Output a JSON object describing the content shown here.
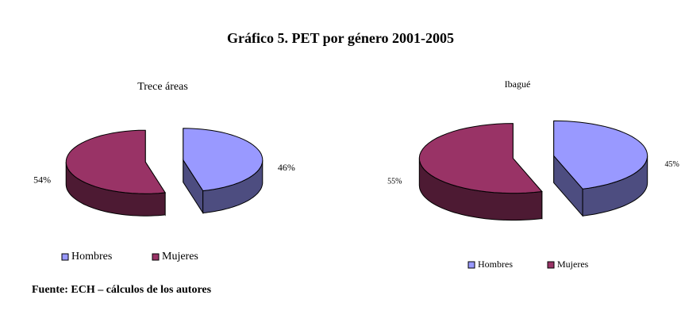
{
  "title": "Gráfico 5. PET por género 2001-2005",
  "source": "Fuente: ECH – cálculos de los autores",
  "chart_data": [
    {
      "type": "pie",
      "title": "Trece áreas",
      "categories": [
        "Hombres",
        "Mujeres"
      ],
      "values": [
        46,
        54
      ],
      "value_labels": [
        "46%",
        "54%"
      ],
      "colors": [
        "#9999ff",
        "#993366"
      ]
    },
    {
      "type": "pie",
      "title": "Ibagué",
      "categories": [
        "Hombres",
        "Mujeres"
      ],
      "values": [
        45,
        55
      ],
      "value_labels": [
        "45%",
        "55%"
      ],
      "colors": [
        "#9999ff",
        "#993366"
      ]
    }
  ]
}
